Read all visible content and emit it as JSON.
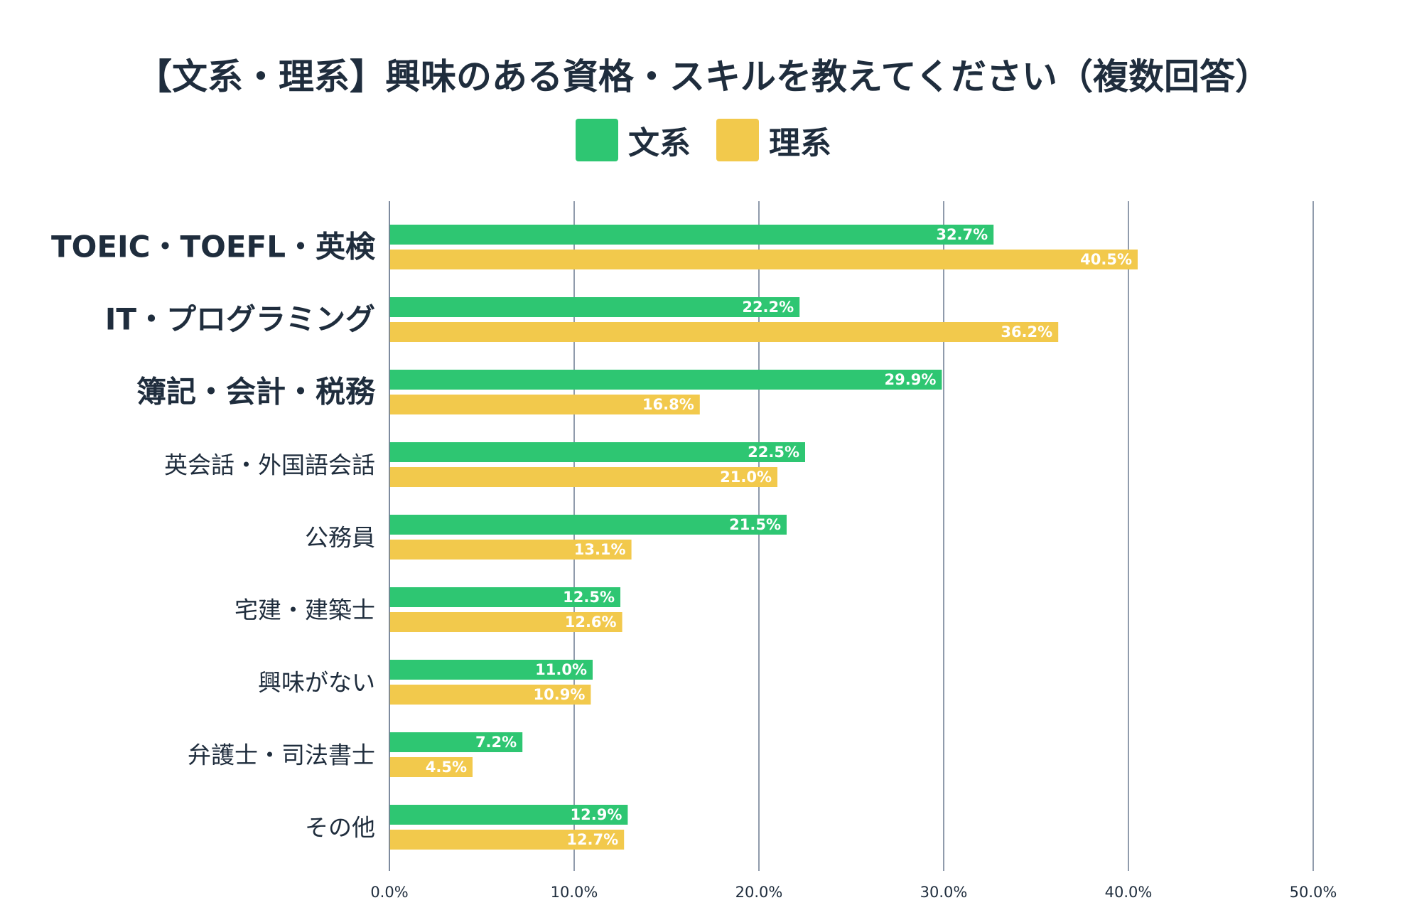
{
  "chart_data": {
    "type": "bar",
    "orientation": "horizontal",
    "title": "【文系・理系】興味のある資格・スキルを教えてください（複数回答）",
    "categories": [
      "TOEIC・TOEFL・英検",
      "IT・プログラミング",
      "簿記・会計・税務",
      "英会話・外国語会話",
      "公務員",
      "宅建・建築士",
      "興味がない",
      "弁護士・司法書士",
      "その他"
    ],
    "emphasized_categories": [
      0,
      1,
      2
    ],
    "series": [
      {
        "name": "文系",
        "color": "#2ec672",
        "values": [
          32.7,
          22.2,
          29.9,
          22.5,
          21.5,
          12.5,
          11.0,
          7.2,
          12.9
        ],
        "labels": [
          "32.7%",
          "22.2%",
          "29.9%",
          "22.5%",
          "21.5%",
          "12.5%",
          "11.0%",
          "7.2%",
          "12.9%"
        ]
      },
      {
        "name": "理系",
        "color": "#f2c94c",
        "values": [
          40.5,
          36.2,
          16.8,
          21.0,
          13.1,
          12.6,
          10.9,
          4.5,
          12.7
        ],
        "labels": [
          "40.5%",
          "36.2%",
          "16.8%",
          "21.0%",
          "13.1%",
          "12.6%",
          "10.9%",
          "4.5%",
          "12.7%"
        ]
      }
    ],
    "xlim": [
      0,
      50
    ],
    "xticks": [
      "0.0%",
      "10.0%",
      "20.0%",
      "30.0%",
      "40.0%",
      "50.0%"
    ],
    "grid": true,
    "legend_position": "top-center",
    "xlabel": "",
    "ylabel": ""
  }
}
